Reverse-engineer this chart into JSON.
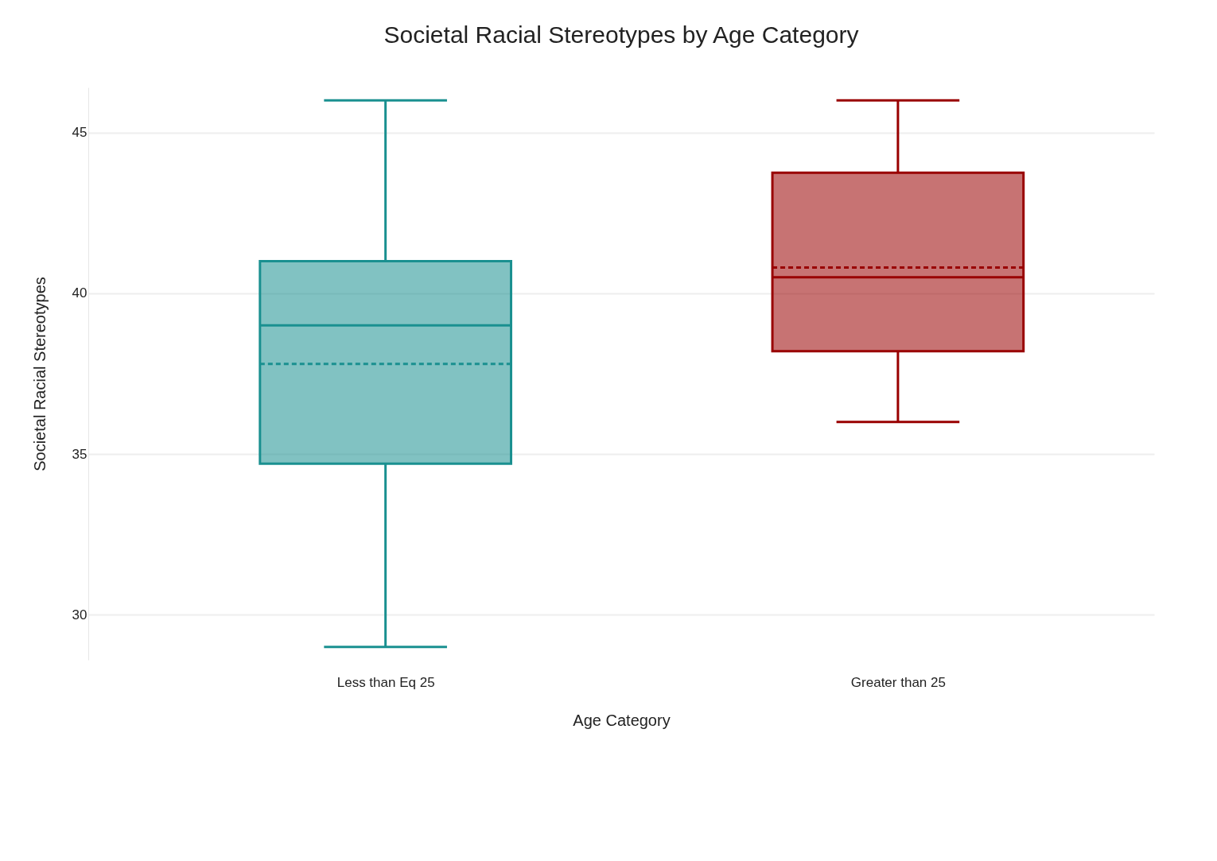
{
  "chart_data": {
    "type": "box",
    "title": "Societal Racial Stereotypes by Age Category",
    "xlabel": "Age Category",
    "ylabel": "Societal Racial Stereotypes",
    "categories": [
      "Less than Eq 25",
      "Greater than 25"
    ],
    "boxes": [
      {
        "low": 29.0,
        "q1": 34.7,
        "median": 39.0,
        "q3": 41.0,
        "high": 46.0,
        "mean": 37.8
      },
      {
        "low": 36.0,
        "q1": 38.2,
        "median": 40.5,
        "q3": 43.75,
        "high": 46.0,
        "mean": 40.8
      }
    ],
    "colors": [
      "#1a9090",
      "#990000"
    ],
    "ylim": [
      28.6,
      46.4
    ],
    "yticks": [
      30,
      35,
      40,
      45
    ],
    "grid": "y"
  }
}
